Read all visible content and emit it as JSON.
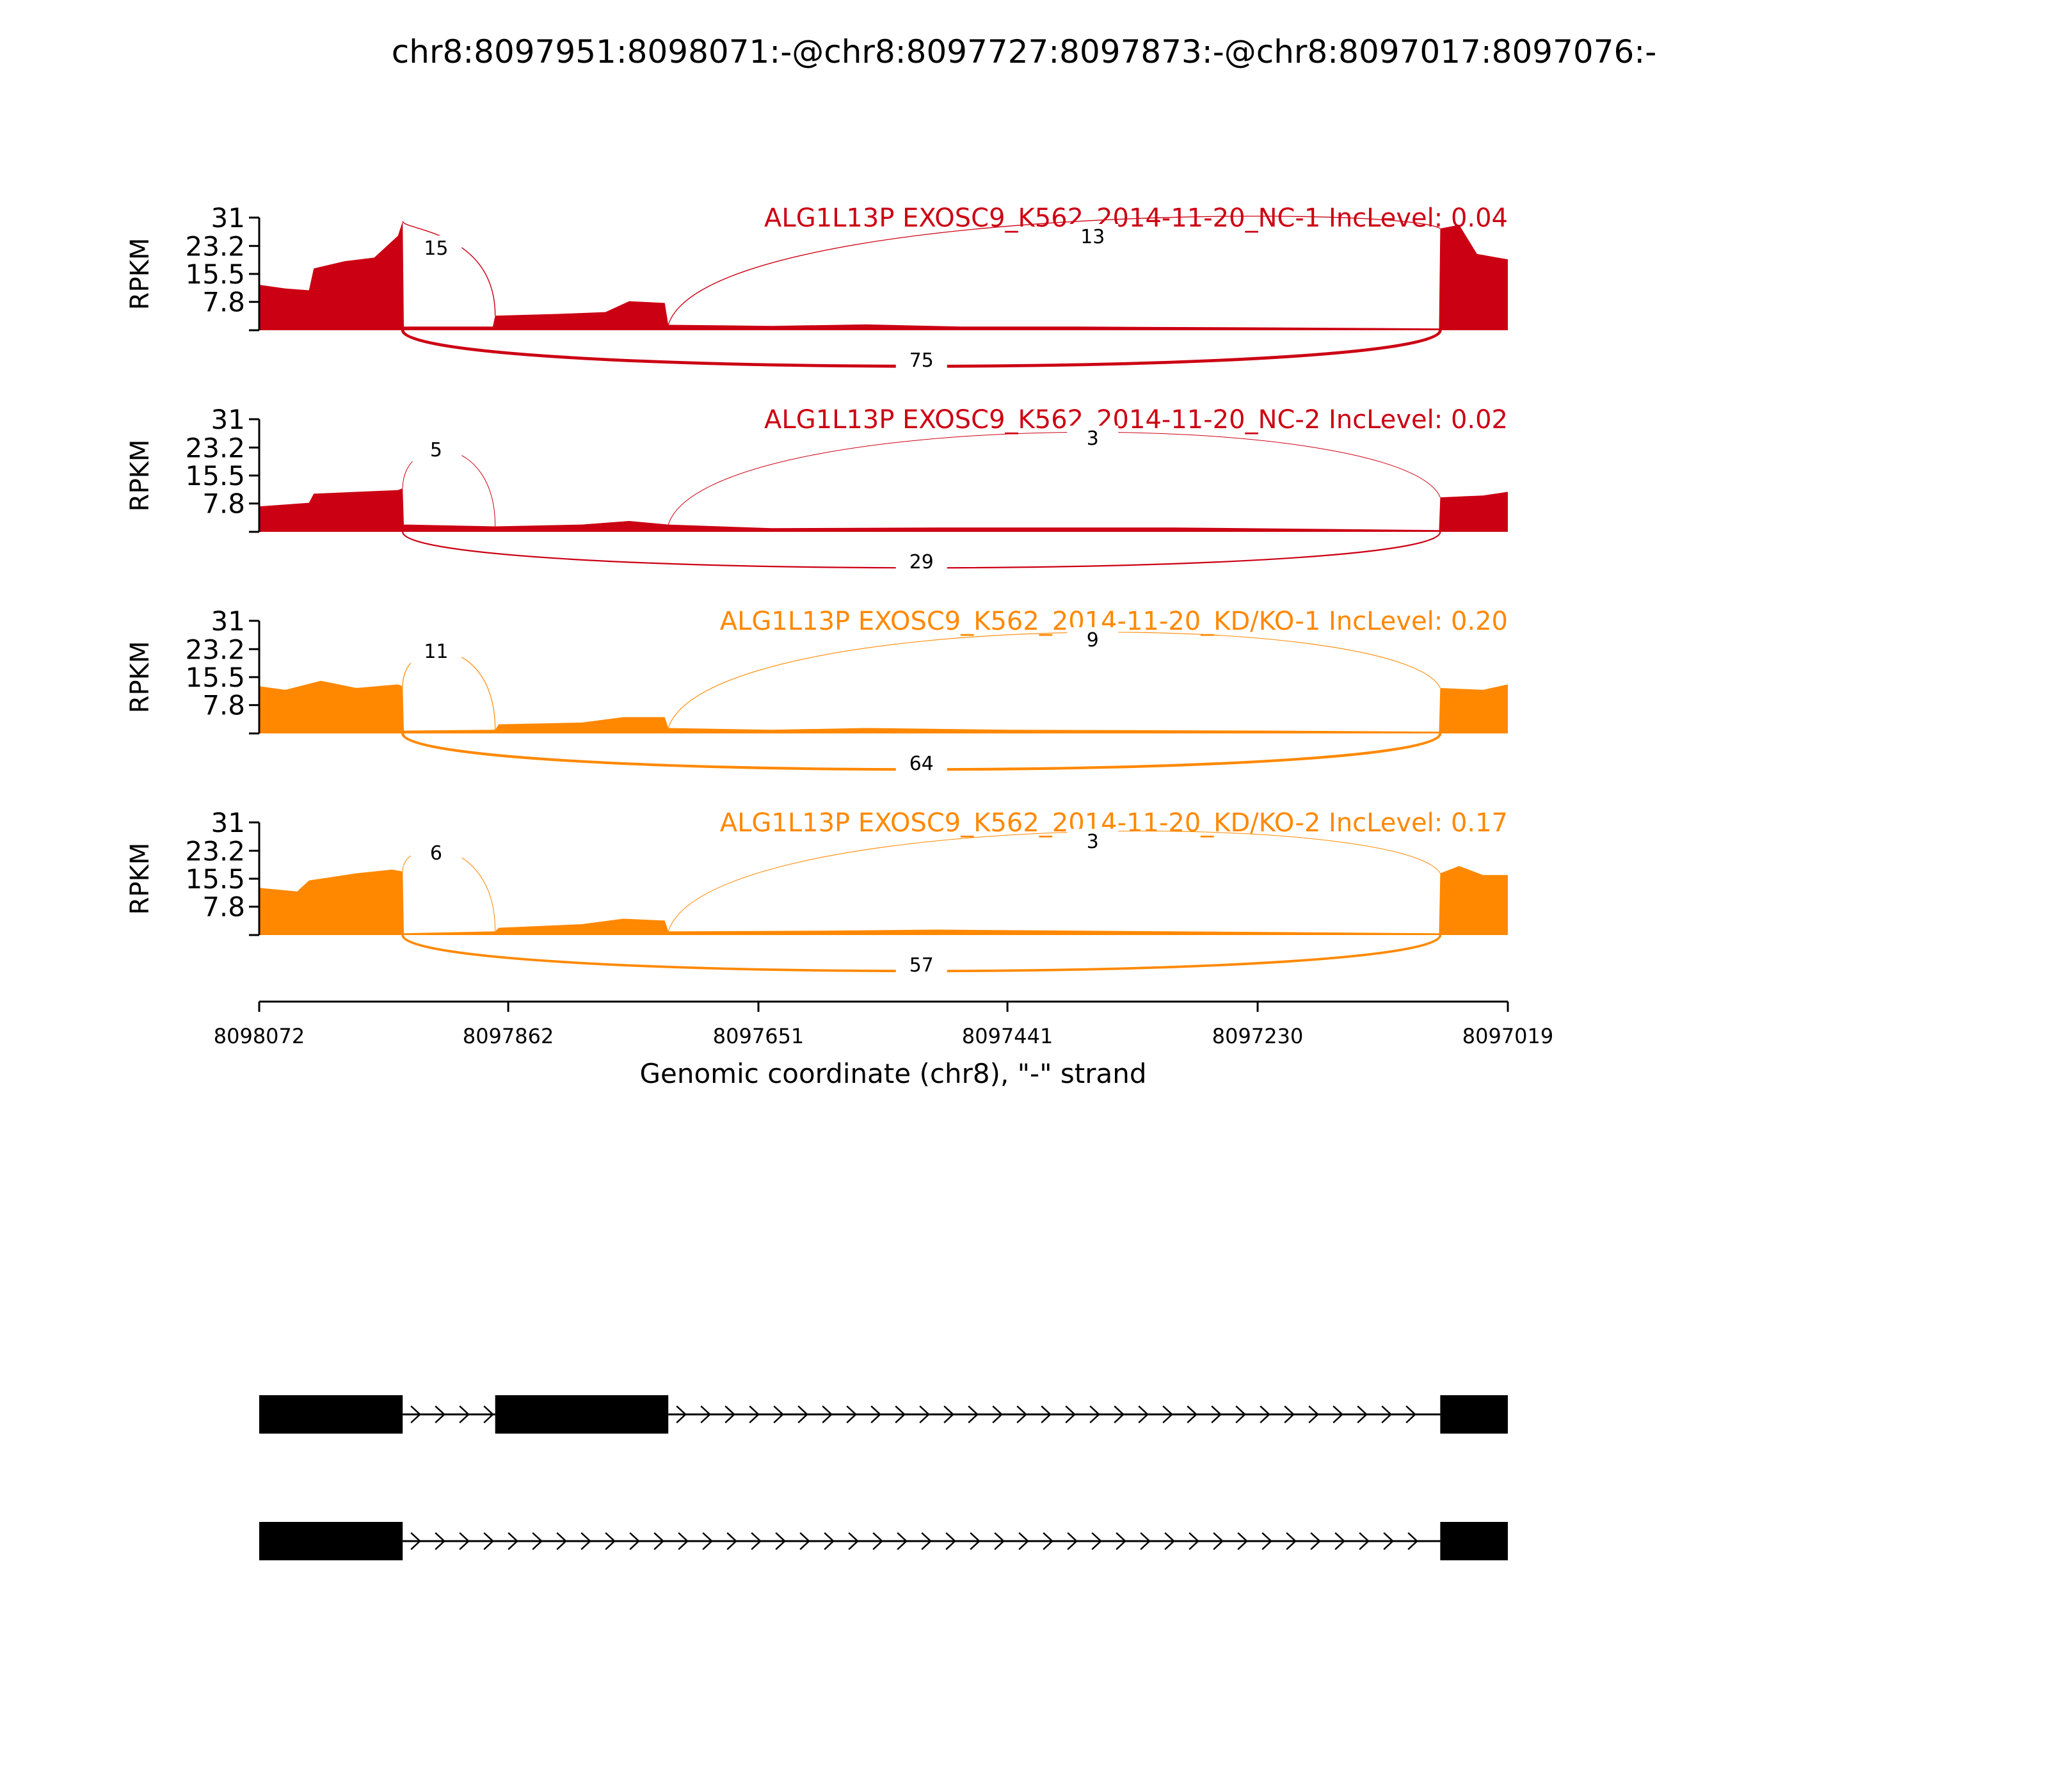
{
  "title": "chr8:8097951:8098071:-@chr8:8097727:8097873:-@chr8:8097017:8097076:-",
  "chart_data": {
    "type": "area",
    "xlabel": "Genomic coordinate (chr8), \"-\" strand",
    "xlim": [
      8098072,
      8097019
    ],
    "x_ticks": [
      "8098072",
      "8097862",
      "8097651",
      "8097441",
      "8097230",
      "8097019"
    ],
    "ylabel": "RPKM",
    "ylim": [
      0,
      31
    ],
    "y_ticks": [
      "31",
      "23.2",
      "15.5",
      "7.8"
    ],
    "exons": [
      {
        "name": "exon1",
        "start": 8098072,
        "end": 8097951
      },
      {
        "name": "exon2",
        "start": 8097873,
        "end": 8097727
      },
      {
        "name": "exon3",
        "start": 8097076,
        "end": 8097019
      }
    ],
    "series": [
      {
        "name": "ALG1L13P EXOSC9_K562_2014-11-20_NC-1 IncLevel: 0.04",
        "color": "#cc0013",
        "coverage": [
          {
            "x": 8098072,
            "y": 12.5
          },
          {
            "x": 8098050,
            "y": 11.5
          },
          {
            "x": 8098030,
            "y": 11.0
          },
          {
            "x": 8098026,
            "y": 17.0
          },
          {
            "x": 8098000,
            "y": 19.0
          },
          {
            "x": 8097975,
            "y": 20.0
          },
          {
            "x": 8097955,
            "y": 26.0
          },
          {
            "x": 8097951,
            "y": 30.0
          },
          {
            "x": 8097950,
            "y": 1.0
          },
          {
            "x": 8097875,
            "y": 1.0
          },
          {
            "x": 8097873,
            "y": 4.0
          },
          {
            "x": 8097820,
            "y": 4.5
          },
          {
            "x": 8097780,
            "y": 5.0
          },
          {
            "x": 8097760,
            "y": 8.0
          },
          {
            "x": 8097730,
            "y": 7.5
          },
          {
            "x": 8097727,
            "y": 1.5
          },
          {
            "x": 8097640,
            "y": 1.2
          },
          {
            "x": 8097560,
            "y": 1.6
          },
          {
            "x": 8097480,
            "y": 1.0
          },
          {
            "x": 8097380,
            "y": 1.0
          },
          {
            "x": 8097230,
            "y": 0.8
          },
          {
            "x": 8097077,
            "y": 0.5
          },
          {
            "x": 8097076,
            "y": 28.0
          },
          {
            "x": 8097060,
            "y": 29.0
          },
          {
            "x": 8097045,
            "y": 21.0
          },
          {
            "x": 8097019,
            "y": 19.5
          }
        ],
        "junctions": [
          {
            "from": 8097951,
            "to": 8097873,
            "count": "15",
            "side": "above"
          },
          {
            "from": 8097727,
            "to": 8097076,
            "count": "13",
            "side": "above"
          },
          {
            "from": 8097951,
            "to": 8097076,
            "count": "75",
            "side": "below"
          }
        ]
      },
      {
        "name": "ALG1L13P EXOSC9_K562_2014-11-20_NC-2 IncLevel: 0.02",
        "color": "#cc0013",
        "coverage": [
          {
            "x": 8098072,
            "y": 7.0
          },
          {
            "x": 8098030,
            "y": 8.0
          },
          {
            "x": 8098026,
            "y": 10.5
          },
          {
            "x": 8097990,
            "y": 11.0
          },
          {
            "x": 8097955,
            "y": 11.5
          },
          {
            "x": 8097951,
            "y": 12.0
          },
          {
            "x": 8097950,
            "y": 2.0
          },
          {
            "x": 8097873,
            "y": 1.5
          },
          {
            "x": 8097800,
            "y": 2.0
          },
          {
            "x": 8097760,
            "y": 3.0
          },
          {
            "x": 8097727,
            "y": 2.0
          },
          {
            "x": 8097640,
            "y": 1.0
          },
          {
            "x": 8097500,
            "y": 1.2
          },
          {
            "x": 8097300,
            "y": 1.2
          },
          {
            "x": 8097077,
            "y": 0.5
          },
          {
            "x": 8097076,
            "y": 9.5
          },
          {
            "x": 8097040,
            "y": 10.0
          },
          {
            "x": 8097019,
            "y": 11.0
          }
        ],
        "junctions": [
          {
            "from": 8097951,
            "to": 8097873,
            "count": "5",
            "side": "above"
          },
          {
            "from": 8097727,
            "to": 8097076,
            "count": "3",
            "side": "above"
          },
          {
            "from": 8097951,
            "to": 8097076,
            "count": "29",
            "side": "below"
          }
        ]
      },
      {
        "name": "ALG1L13P EXOSC9_K562_2014-11-20_KD/KO-1 IncLevel: 0.20",
        "color": "#ff8800",
        "coverage": [
          {
            "x": 8098072,
            "y": 13.0
          },
          {
            "x": 8098050,
            "y": 12.0
          },
          {
            "x": 8098020,
            "y": 14.5
          },
          {
            "x": 8097990,
            "y": 12.5
          },
          {
            "x": 8097955,
            "y": 13.5
          },
          {
            "x": 8097951,
            "y": 13.0
          },
          {
            "x": 8097950,
            "y": 0.8
          },
          {
            "x": 8097873,
            "y": 1.0
          },
          {
            "x": 8097870,
            "y": 2.5
          },
          {
            "x": 8097800,
            "y": 3.0
          },
          {
            "x": 8097765,
            "y": 4.5
          },
          {
            "x": 8097730,
            "y": 4.5
          },
          {
            "x": 8097727,
            "y": 1.5
          },
          {
            "x": 8097640,
            "y": 1.0
          },
          {
            "x": 8097560,
            "y": 1.5
          },
          {
            "x": 8097440,
            "y": 1.0
          },
          {
            "x": 8097230,
            "y": 0.8
          },
          {
            "x": 8097077,
            "y": 0.5
          },
          {
            "x": 8097076,
            "y": 12.5
          },
          {
            "x": 8097040,
            "y": 12.0
          },
          {
            "x": 8097019,
            "y": 13.5
          }
        ],
        "junctions": [
          {
            "from": 8097951,
            "to": 8097873,
            "count": "11",
            "side": "above"
          },
          {
            "from": 8097727,
            "to": 8097076,
            "count": "9",
            "side": "above"
          },
          {
            "from": 8097951,
            "to": 8097076,
            "count": "64",
            "side": "below"
          }
        ]
      },
      {
        "name": "ALG1L13P EXOSC9_K562_2014-11-20_KD/KO-2 IncLevel: 0.17",
        "color": "#ff8800",
        "coverage": [
          {
            "x": 8098072,
            "y": 13.0
          },
          {
            "x": 8098040,
            "y": 12.0
          },
          {
            "x": 8098030,
            "y": 15.0
          },
          {
            "x": 8097990,
            "y": 17.0
          },
          {
            "x": 8097960,
            "y": 18.0
          },
          {
            "x": 8097951,
            "y": 17.5
          },
          {
            "x": 8097950,
            "y": 0.5
          },
          {
            "x": 8097873,
            "y": 1.0
          },
          {
            "x": 8097870,
            "y": 2.0
          },
          {
            "x": 8097800,
            "y": 3.0
          },
          {
            "x": 8097765,
            "y": 4.5
          },
          {
            "x": 8097730,
            "y": 4.0
          },
          {
            "x": 8097727,
            "y": 1.0
          },
          {
            "x": 8097600,
            "y": 1.2
          },
          {
            "x": 8097500,
            "y": 1.5
          },
          {
            "x": 8097300,
            "y": 1.0
          },
          {
            "x": 8097077,
            "y": 0.5
          },
          {
            "x": 8097076,
            "y": 17.0
          },
          {
            "x": 8097060,
            "y": 19.0
          },
          {
            "x": 8097040,
            "y": 16.5
          },
          {
            "x": 8097019,
            "y": 16.5
          }
        ],
        "junctions": [
          {
            "from": 8097951,
            "to": 8097873,
            "count": "6",
            "side": "above"
          },
          {
            "from": 8097727,
            "to": 8097076,
            "count": "3",
            "side": "above"
          },
          {
            "from": 8097951,
            "to": 8097076,
            "count": "57",
            "side": "below"
          }
        ]
      }
    ],
    "isoforms": [
      {
        "exons": [
          [
            8098072,
            8097951
          ],
          [
            8097873,
            8097727
          ],
          [
            8097076,
            8097019
          ]
        ]
      },
      {
        "exons": [
          [
            8098072,
            8097951
          ],
          [
            8097076,
            8097019
          ]
        ]
      }
    ]
  }
}
